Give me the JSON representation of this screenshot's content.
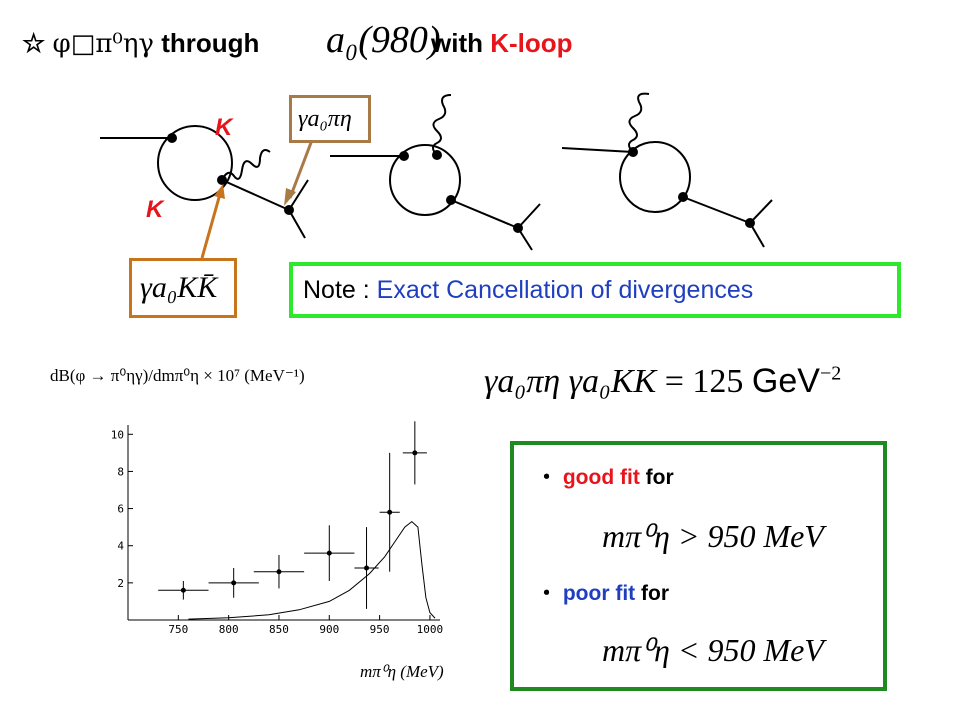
{
  "header": {
    "star": "☆",
    "process": "φ□π⁰ηγ",
    "through": "through",
    "a0_label": "a₀(980)",
    "with": "with",
    "kloop": "K-loop"
  },
  "diagrams": {
    "k_top": "K",
    "k_bottom": "K",
    "coupling_a0_pi_eta": "γa₀πη",
    "coupling_a0_k_kbar": "γa₀KK̄"
  },
  "note": {
    "prefix": "Note : ",
    "text": "Exact Cancellation of divergences"
  },
  "coupling_product": {
    "lhs": "γa₀πη γa₀KK",
    "equals": "=",
    "value": "125",
    "unit": "GeV",
    "exponent": "−2"
  },
  "fit": {
    "bullet": "・",
    "good_word1": "good fit",
    "good_word2": "for",
    "good_condition": "mπ⁰η > 950 MeV",
    "poor_word1": "poor fit",
    "poor_word2": "for",
    "poor_condition": "mπ⁰η < 950 MeV"
  },
  "chart_data": {
    "type": "scatter",
    "ylabel": "dB(φ → π⁰ηγ)/dmπ⁰η × 10⁷ (MeV⁻¹)",
    "xlabel": "mπ⁰η (MeV)",
    "xlim": [
      700,
      1010
    ],
    "ylim": [
      0,
      10.5
    ],
    "x_ticks": [
      "750",
      "800",
      "850",
      "900",
      "950",
      "1000"
    ],
    "y_ticks": [
      "2",
      "4",
      "6",
      "8",
      "10"
    ],
    "points": [
      {
        "x": 755,
        "y": 1.6,
        "xerr": 25,
        "yerr": 0.5
      },
      {
        "x": 805,
        "y": 2.0,
        "xerr": 25,
        "yerr": 0.8
      },
      {
        "x": 850,
        "y": 2.6,
        "xerr": 25,
        "yerr": 0.9
      },
      {
        "x": 900,
        "y": 3.6,
        "xerr": 25,
        "yerr": 1.5
      },
      {
        "x": 937,
        "y": 2.8,
        "xerr": 12,
        "yerr": 2.2
      },
      {
        "x": 960,
        "y": 5.8,
        "xerr": 10,
        "yerr": 3.2
      },
      {
        "x": 985,
        "y": 9.0,
        "xerr": 12,
        "yerr": 1.7
      }
    ],
    "curve": [
      [
        760,
        0.05
      ],
      [
        800,
        0.12
      ],
      [
        840,
        0.28
      ],
      [
        870,
        0.55
      ],
      [
        900,
        1.0
      ],
      [
        920,
        1.6
      ],
      [
        940,
        2.5
      ],
      [
        955,
        3.4
      ],
      [
        965,
        4.2
      ],
      [
        975,
        5.0
      ],
      [
        982,
        5.3
      ],
      [
        988,
        5.0
      ],
      [
        992,
        3.0
      ],
      [
        996,
        1.2
      ],
      [
        1000,
        0.4
      ],
      [
        1005,
        0.1
      ]
    ]
  }
}
